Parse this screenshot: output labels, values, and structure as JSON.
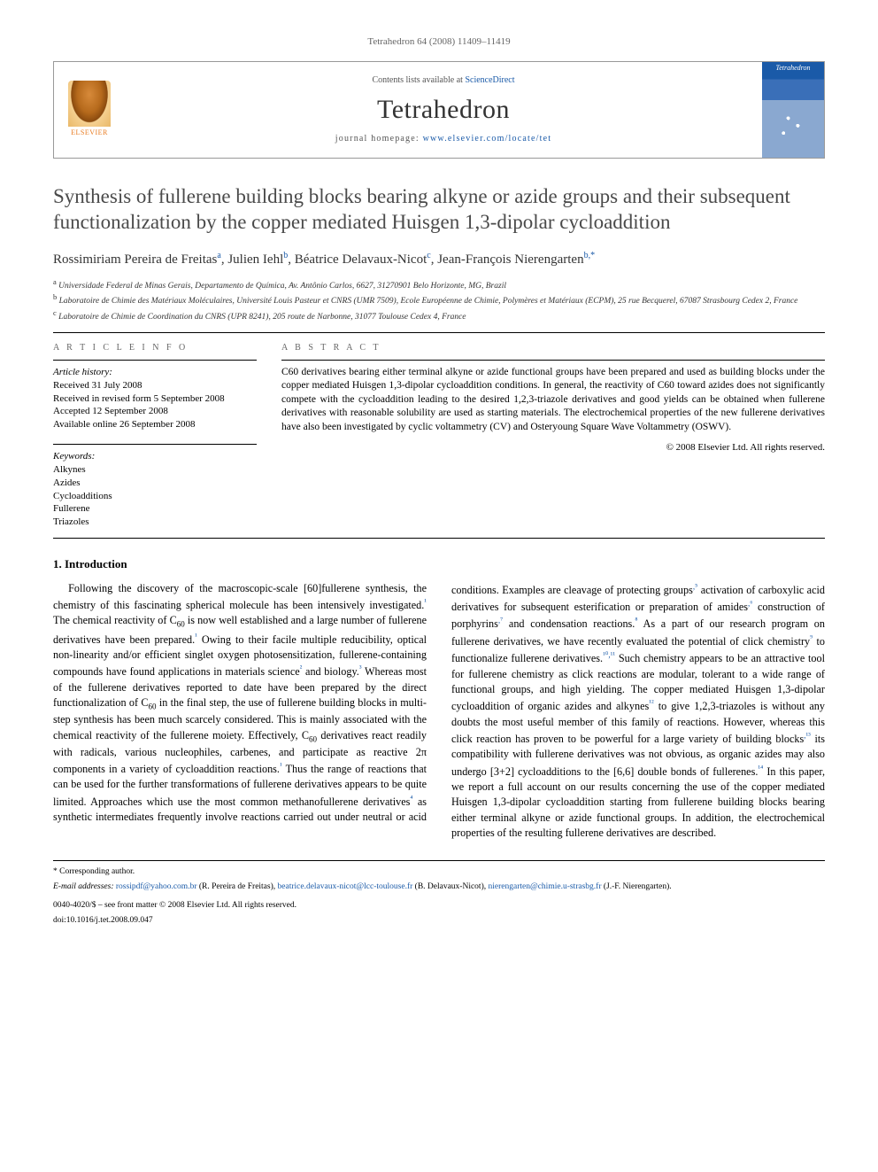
{
  "header": {
    "citation": "Tetrahedron 64 (2008) 11409–11419",
    "contents_prefix": "Contents lists available at ",
    "contents_link": "ScienceDirect",
    "journal": "Tetrahedron",
    "homepage_prefix": "journal homepage: ",
    "homepage_url": "www.elsevier.com/locate/tet",
    "publisher_label": "ELSEVIER",
    "cover_label": "Tetrahedron"
  },
  "title": "Synthesis of fullerene building blocks bearing alkyne or azide groups and their subsequent functionalization by the copper mediated Huisgen 1,3-dipolar cycloaddition",
  "authors_html": "Rossimiriam Pereira de Freitas|a|, Julien Iehl|b|, Béatrice Delavaux-Nicot|c|, Jean-François Nierengarten|b,*|",
  "affiliations": [
    {
      "mark": "a",
      "text": "Universidade Federal de Minas Gerais, Departamento de Química, Av. Antônio Carlos, 6627, 31270901 Belo Horizonte, MG, Brazil"
    },
    {
      "mark": "b",
      "text": "Laboratoire de Chimie des Matériaux Moléculaires, Université Louis Pasteur et CNRS (UMR 7509), Ecole Européenne de Chimie, Polymères et Matériaux (ECPM), 25 rue Becquerel, 67087 Strasbourg Cedex 2, France"
    },
    {
      "mark": "c",
      "text": "Laboratoire de Chimie de Coordination du CNRS (UPR 8241), 205 route de Narbonne, 31077 Toulouse Cedex 4, France"
    }
  ],
  "article_info": {
    "head": "A R T I C L E   I N F O",
    "history_head": "Article history:",
    "history": [
      "Received 31 July 2008",
      "Received in revised form 5 September 2008",
      "Accepted 12 September 2008",
      "Available online 26 September 2008"
    ],
    "keywords_head": "Keywords:",
    "keywords": [
      "Alkynes",
      "Azides",
      "Cycloadditions",
      "Fullerene",
      "Triazoles"
    ]
  },
  "abstract": {
    "head": "A B S T R A C T",
    "text": "C60 derivatives bearing either terminal alkyne or azide functional groups have been prepared and used as building blocks under the copper mediated Huisgen 1,3-dipolar cycloaddition conditions. In general, the reactivity of C60 toward azides does not significantly compete with the cycloaddition leading to the desired 1,2,3-triazole derivatives and good yields can be obtained when fullerene derivatives with reasonable solubility are used as starting materials. The electrochemical properties of the new fullerene derivatives have also been investigated by cyclic voltammetry (CV) and Osteryoung Square Wave Voltammetry (OSWV).",
    "copyright": "© 2008 Elsevier Ltd. All rights reserved."
  },
  "section1": {
    "head": "1. Introduction",
    "para": "Following the discovery of the macroscopic-scale [60]fullerene synthesis, the chemistry of this fascinating spherical molecule has been intensively investigated.¹ The chemical reactivity of C₆₀ is now well established and a large number of fullerene derivatives have been prepared.¹ Owing to their facile multiple reducibility, optical non-linearity and/or efficient singlet oxygen photosensitization, fullerene-containing compounds have found applications in materials science² and biology.³ Whereas most of the fullerene derivatives reported to date have been prepared by the direct functionalization of C₆₀ in the final step, the use of fullerene building blocks in multi-step synthesis has been much scarcely considered. This is mainly associated with the chemical reactivity of the fullerene moiety. Effectively, C₆₀ derivatives react readily with radicals, various nucleophiles, carbenes, and participate as reactive 2π components in a variety of cycloaddition reactions.¹ Thus the range of reactions that can be used for the further transformations of fullerene derivatives appears to be quite limited. Approaches which use the most common methanofullerene derivatives⁴ as synthetic intermediates frequently involve reactions carried out under neutral or acid conditions. Examples are cleavage of protecting groups,⁵ activation of carboxylic acid derivatives for subsequent esterification or preparation of amides,⁶ construction of porphyrins,⁷ and condensation reactions.⁸ As a part of our research program on fullerene derivatives, we have recently evaluated the potential of click chemistry⁹ to functionalize fullerene derivatives.¹⁰,¹¹ Such chemistry appears to be an attractive tool for fullerene chemistry as click reactions are modular, tolerant to a wide range of functional groups, and high yielding. The copper mediated Huisgen 1,3-dipolar cycloaddition of organic azides and alkynes¹² to give 1,2,3-triazoles is without any doubts the most useful member of this family of reactions. However, whereas this click reaction has proven to be powerful for a large variety of building blocks,¹³ its compatibility with fullerene derivatives was not obvious, as organic azides may also undergo [3+2] cycloadditions to the [6,6] double bonds of fullerenes.¹⁴ In this paper, we report a full account on our results concerning the use of the copper mediated Huisgen 1,3-dipolar cycloaddition starting from fullerene building blocks bearing either terminal alkyne or azide functional groups. In addition, the electrochemical properties of the resulting fullerene derivatives are described."
  },
  "footer": {
    "corr": "* Corresponding author.",
    "email_label": "E-mail addresses:",
    "emails": [
      {
        "addr": "rossipdf@yahoo.com.br",
        "who": "(R. Pereira de Freitas)"
      },
      {
        "addr": "beatrice.delavaux-nicot@lcc-toulouse.fr",
        "who": "(B. Delavaux-Nicot)"
      },
      {
        "addr": "nierengarten@chimie.u-strasbg.fr",
        "who": "(J.-F. Nierengarten)."
      }
    ],
    "issn_line": "0040-4020/$ – see front matter © 2008 Elsevier Ltd. All rights reserved.",
    "doi": "doi:10.1016/j.tet.2008.09.047"
  },
  "colors": {
    "link": "#1a5aa8",
    "text": "#000000",
    "muted": "#666666"
  }
}
